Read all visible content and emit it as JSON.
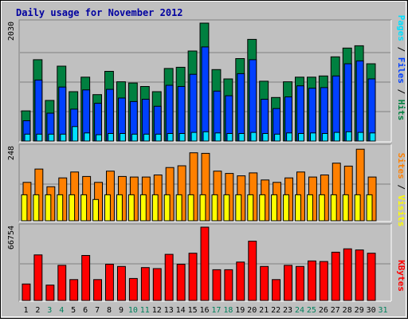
{
  "title": "Daily usage for November 2012",
  "right_labels": {
    "pages": "Pages",
    "files": "Files",
    "hits": "Hits",
    "sites": "Sites",
    "visits": "Visits",
    "kbytes": "KBytes",
    "sep": " / "
  },
  "colors": {
    "hits": "#008040",
    "files": "#0040ff",
    "pages": "#00e0ff",
    "visits": "#ff8000",
    "sites": "#ffff00",
    "kbytes": "#ff0000",
    "title": "#0000a0",
    "weekend": "#00805c",
    "panel_bg": "#c0c0c0",
    "gridline": "#808080"
  },
  "chart_data": [
    {
      "type": "bar",
      "panel": "hits",
      "ylabel_max": "2030",
      "ylim": [
        0,
        2030
      ],
      "categories": [
        "1",
        "2",
        "3",
        "4",
        "5",
        "6",
        "7",
        "8",
        "9",
        "10",
        "11",
        "12",
        "13",
        "14",
        "15",
        "16",
        "17",
        "18",
        "19",
        "20",
        "21",
        "22",
        "23",
        "24",
        "25",
        "26",
        "27",
        "28",
        "29",
        "30",
        "31"
      ],
      "weekend_days": [
        "3",
        "4",
        "10",
        "11",
        "17",
        "18",
        "24",
        "25",
        "31"
      ],
      "series": [
        {
          "name": "Hits",
          "values": [
            520,
            1400,
            700,
            1290,
            850,
            1100,
            800,
            1200,
            1020,
            1000,
            940,
            850,
            1250,
            1270,
            1550,
            2030,
            1230,
            1070,
            1420,
            1750,
            1030,
            750,
            1020,
            1100,
            1100,
            1120,
            1450,
            1600,
            1640,
            1330,
            0
          ]
        },
        {
          "name": "Files",
          "values": [
            350,
            1050,
            480,
            930,
            550,
            880,
            650,
            890,
            740,
            680,
            720,
            600,
            960,
            940,
            1150,
            1620,
            860,
            780,
            1160,
            1400,
            720,
            560,
            760,
            950,
            910,
            920,
            1120,
            1330,
            1380,
            1070,
            0
          ]
        },
        {
          "name": "Pages",
          "values": [
            120,
            120,
            120,
            120,
            250,
            140,
            110,
            130,
            130,
            120,
            120,
            120,
            130,
            130,
            150,
            160,
            140,
            130,
            130,
            150,
            130,
            120,
            140,
            130,
            140,
            130,
            150,
            160,
            150,
            140,
            0
          ]
        }
      ]
    },
    {
      "type": "bar",
      "panel": "visits",
      "ylabel_max": "248",
      "ylim": [
        0,
        248
      ],
      "categories": [
        "1",
        "2",
        "3",
        "4",
        "5",
        "6",
        "7",
        "8",
        "9",
        "10",
        "11",
        "12",
        "13",
        "14",
        "15",
        "16",
        "17",
        "18",
        "19",
        "20",
        "21",
        "22",
        "23",
        "24",
        "25",
        "26",
        "27",
        "28",
        "29",
        "30",
        "31"
      ],
      "series": [
        {
          "name": "Visits",
          "values": [
            130,
            175,
            115,
            145,
            165,
            150,
            130,
            168,
            150,
            148,
            148,
            155,
            180,
            186,
            230,
            228,
            168,
            160,
            152,
            162,
            138,
            130,
            145,
            165,
            148,
            155,
            195,
            185,
            242,
            148,
            0
          ]
        },
        {
          "name": "Sites",
          "values": [
            88,
            88,
            88,
            88,
            88,
            88,
            72,
            88,
            88,
            88,
            88,
            88,
            88,
            88,
            88,
            88,
            88,
            88,
            88,
            88,
            88,
            88,
            88,
            88,
            88,
            88,
            88,
            88,
            88,
            88,
            0
          ]
        }
      ]
    },
    {
      "type": "bar",
      "panel": "kbytes",
      "ylabel_max": "66754",
      "ylim": [
        0,
        66754
      ],
      "categories": [
        "1",
        "2",
        "3",
        "4",
        "5",
        "6",
        "7",
        "8",
        "9",
        "10",
        "11",
        "12",
        "13",
        "14",
        "15",
        "16",
        "17",
        "18",
        "19",
        "20",
        "21",
        "22",
        "23",
        "24",
        "25",
        "26",
        "27",
        "28",
        "29",
        "30",
        "31"
      ],
      "series": [
        {
          "name": "KBytes",
          "values": [
            15000,
            41500,
            14000,
            32000,
            19000,
            41000,
            19000,
            33000,
            31000,
            20000,
            30000,
            29000,
            42000,
            33000,
            43000,
            66754,
            28000,
            28000,
            35000,
            54000,
            31000,
            19000,
            32000,
            31000,
            36000,
            35500,
            44000,
            47000,
            46000,
            43000,
            0
          ]
        }
      ]
    }
  ]
}
